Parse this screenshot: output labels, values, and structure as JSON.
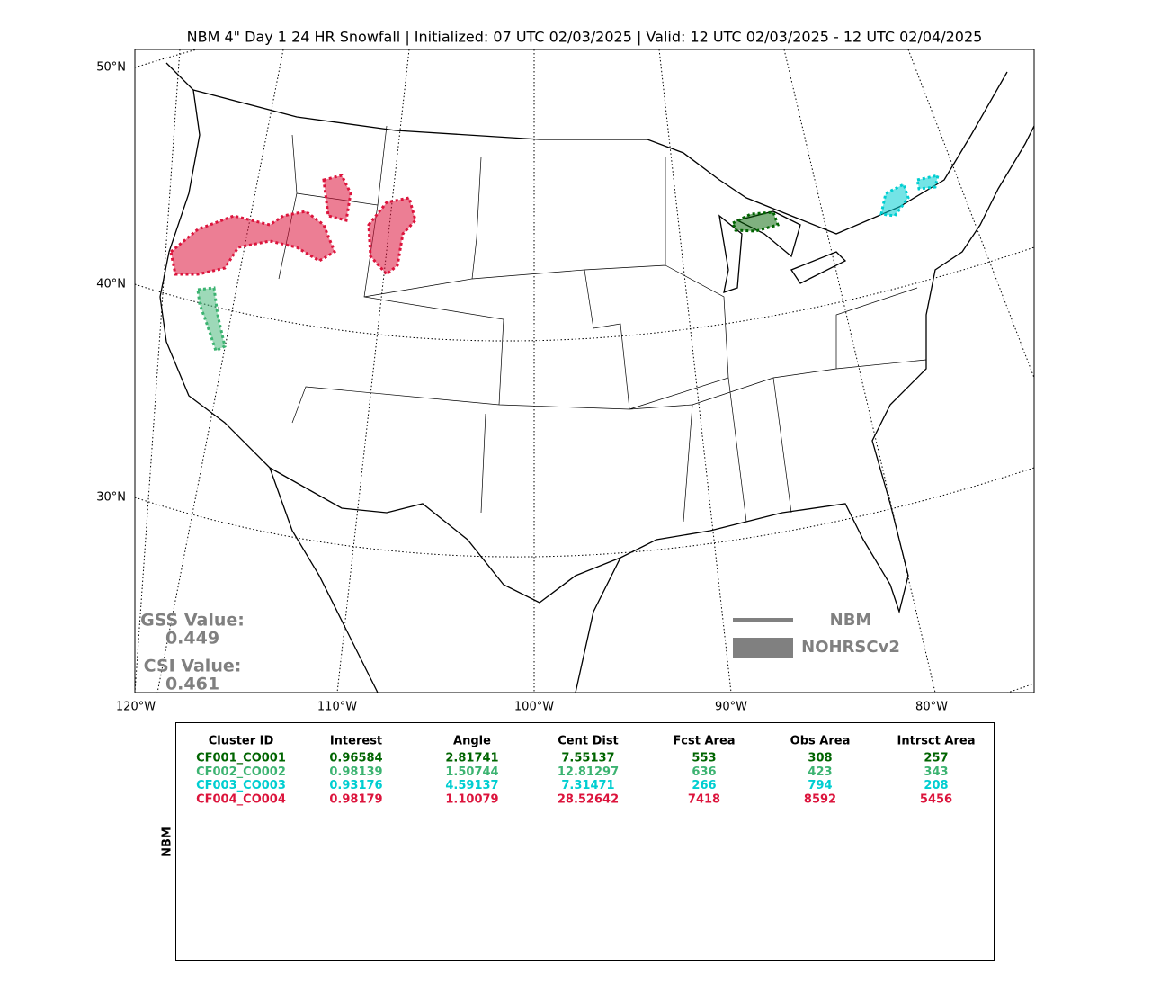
{
  "title": "NBM 4\" Day 1 24 HR Snowfall | Initialized: 07 UTC 02/03/2025 | Valid: 12 UTC 02/03/2025 - 12 UTC 02/04/2025",
  "map": {
    "lat_labels": [
      "50°N",
      "40°N",
      "30°N"
    ],
    "lon_labels": [
      "120°W",
      "110°W",
      "100°W",
      "90°W",
      "80°W"
    ]
  },
  "scores": {
    "gss_label": "GSS Value:",
    "gss_value": "0.449",
    "csi_label": "CSI Value:",
    "csi_value": "0.461"
  },
  "legend": {
    "forecast": "NBM",
    "observed": "NOHRSCv2"
  },
  "table": {
    "side_label": "NBM",
    "columns": [
      "Cluster ID",
      "Interest",
      "Angle",
      "Cent Dist",
      "Fcst Area",
      "Obs Area",
      "Intrsct Area"
    ],
    "rows": [
      {
        "color": "#006400",
        "cells": [
          "CF001_CO001",
          "0.96584",
          "2.81741",
          "7.55137",
          "553",
          "308",
          "257"
        ]
      },
      {
        "color": "#3cb371",
        "cells": [
          "CF002_CO002",
          "0.98139",
          "1.50744",
          "12.81297",
          "636",
          "423",
          "343"
        ]
      },
      {
        "color": "#00ced1",
        "cells": [
          "CF003_CO003",
          "0.93176",
          "4.59137",
          "7.31471",
          "266",
          "794",
          "208"
        ]
      },
      {
        "color": "#dc143c",
        "cells": [
          "CF004_CO004",
          "0.98179",
          "1.10079",
          "28.52642",
          "7418",
          "8592",
          "5456"
        ]
      }
    ]
  }
}
